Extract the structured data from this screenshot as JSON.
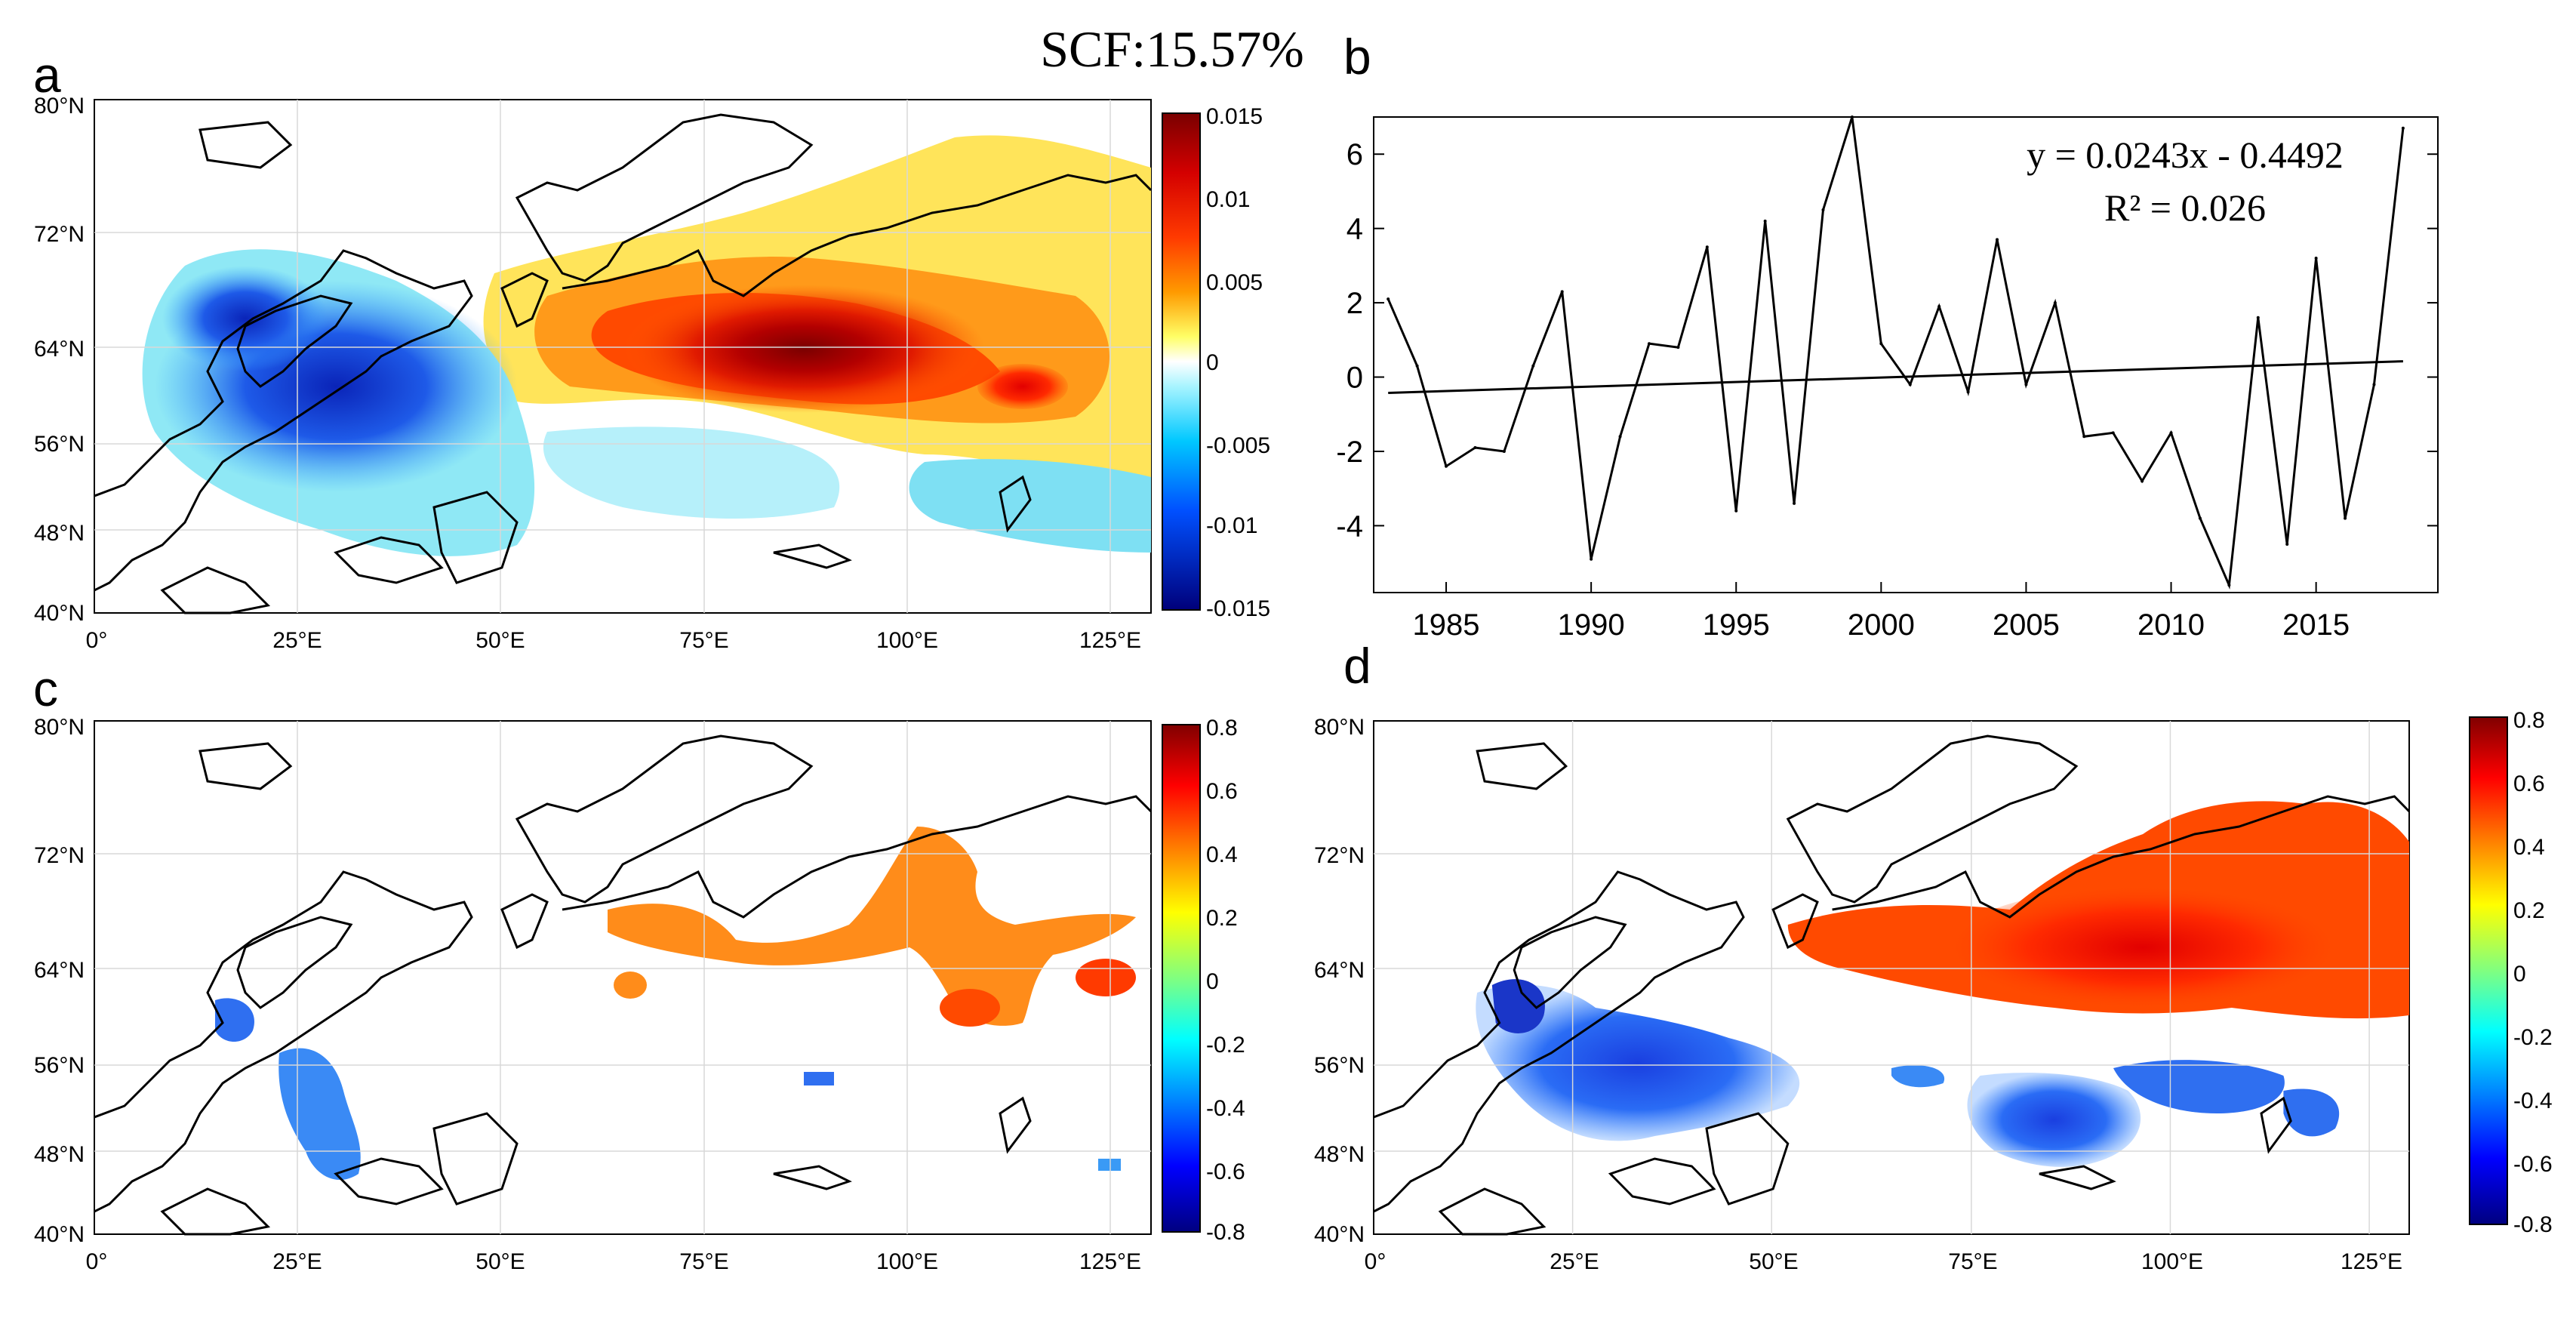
{
  "title": "SCF:15.57%",
  "panel_labels": {
    "a": "a",
    "b": "b",
    "c": "c",
    "d": "d"
  },
  "map": {
    "lat_labels": [
      "40°N",
      "48°N",
      "56°N",
      "64°N",
      "72°N",
      "80°N"
    ],
    "lon_labels": [
      "0°",
      "25°E",
      "50°E",
      "75°E",
      "100°E",
      "125°E"
    ]
  },
  "colorbar_a": {
    "ticks": [
      "0.015",
      "0.01",
      "0.005",
      "0",
      "-0.005",
      "-0.01",
      "-0.015"
    ]
  },
  "colorbar_cd": {
    "ticks": [
      "0.8",
      "0.6",
      "0.4",
      "0.2",
      "0",
      "-0.2",
      "-0.4",
      "-0.6",
      "-0.8"
    ]
  },
  "colors": {
    "positive_strong": "#8b0000",
    "positive": "#ff4500",
    "positive_mid": "#ff8c1a",
    "positive_weak": "#ffe033",
    "negative_weak": "#8fe8f5",
    "negative": "#2f6ff0",
    "negative_strong": "#0a1e9e"
  },
  "chart_data": [
    {
      "type": "heatmap",
      "panel": "a",
      "title": "",
      "xlabel": "",
      "ylabel": "",
      "xlim": [
        0,
        130
      ],
      "ylim": [
        40,
        80
      ],
      "colorbar_range": [
        -0.015,
        0.015
      ]
    },
    {
      "type": "line",
      "panel": "b",
      "title": "",
      "xlabel": "",
      "ylabel": "",
      "x": [
        1983,
        1984,
        1985,
        1986,
        1987,
        1988,
        1989,
        1990,
        1991,
        1992,
        1993,
        1994,
        1995,
        1996,
        1997,
        1998,
        1999,
        2000,
        2001,
        2002,
        2003,
        2004,
        2005,
        2006,
        2007,
        2008,
        2009,
        2010,
        2011,
        2012,
        2013,
        2014,
        2015,
        2016,
        2017,
        2018
      ],
      "series": [
        {
          "name": "SCF PC",
          "values": [
            2.1,
            0.3,
            -2.4,
            -1.9,
            -2.0,
            0.3,
            2.3,
            -4.9,
            -1.6,
            0.9,
            0.8,
            3.5,
            -3.6,
            4.2,
            -3.4,
            4.5,
            7.0,
            0.9,
            -0.2,
            1.9,
            -0.4,
            3.7,
            -0.2,
            2.0,
            -1.6,
            -1.5,
            -2.8,
            -1.5,
            -3.8,
            -5.6,
            1.6,
            -4.5,
            3.2,
            -3.8,
            -0.2,
            6.7
          ]
        },
        {
          "name": "Linear trend",
          "values_from_equation": "y = 0.0243x - 0.4492"
        }
      ],
      "annotations": [
        "y = 0.0243x - 0.4492",
        "R² = 0.026"
      ],
      "xticks": [
        "1985",
        "1990",
        "1995",
        "2000",
        "2005",
        "2010",
        "2015"
      ],
      "yticks": [
        "-4",
        "-2",
        "0",
        "2",
        "4",
        "6"
      ],
      "xlim": [
        1982.5,
        2019.2
      ],
      "ylim": [
        -5.8,
        7.0
      ],
      "trend": {
        "slope": 0.0243,
        "intercept": -0.4492
      }
    },
    {
      "type": "heatmap",
      "panel": "c",
      "title": "",
      "xlabel": "",
      "ylabel": "",
      "xlim": [
        0,
        130
      ],
      "ylim": [
        40,
        80
      ],
      "colorbar_range": [
        -0.8,
        0.8
      ]
    },
    {
      "type": "heatmap",
      "panel": "d",
      "title": "",
      "xlabel": "",
      "ylabel": "",
      "xlim": [
        0,
        130
      ],
      "ylim": [
        40,
        80
      ],
      "colorbar_range": [
        -0.8,
        0.8
      ]
    }
  ]
}
